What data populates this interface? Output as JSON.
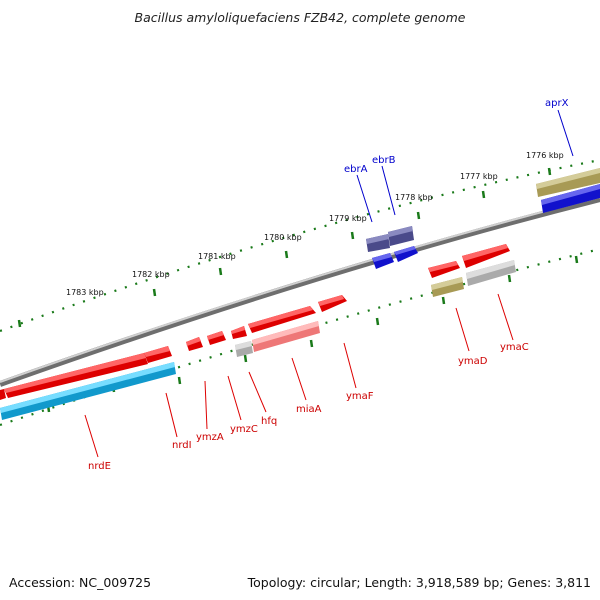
{
  "title": "Bacillus amyloliquefaciens FZB42, complete genome",
  "footer": {
    "accession": "Accession: NC_009725",
    "summary": "Topology: circular; Length: 3,918,589 bp; Genes: 3,811"
  },
  "ticks": [
    "1776 kbp",
    "1777 kbp",
    "1778 kbp",
    "1779 kbp",
    "1780 kbp",
    "1781 kbp",
    "1782 kbp",
    "1783 kbp"
  ],
  "genes": {
    "aprX": "aprX",
    "ebrA": "ebrA",
    "ebrB": "ebrB",
    "ymaC": "ymaC",
    "ymaD": "ymaD",
    "ymaF": "ymaF",
    "miaA": "miaA",
    "hfq": "hfq",
    "ymzC": "ymzC",
    "ymzA": "ymzA",
    "nrdI": "nrdI",
    "nrdE": "nrdE"
  },
  "colors": {
    "backbone": "#7a7a7a",
    "tick": "#1a7a1a",
    "gene_red": "#ee1111",
    "gene_pink": "#ee8888",
    "gene_cyan": "#11aadd",
    "gene_blue": "#1111dd",
    "gene_purple": "#555599",
    "gene_olive": "#aaa066",
    "gene_gray": "#aaaaaa",
    "label_red": "#cc0000",
    "label_blue": "#0000cc"
  }
}
